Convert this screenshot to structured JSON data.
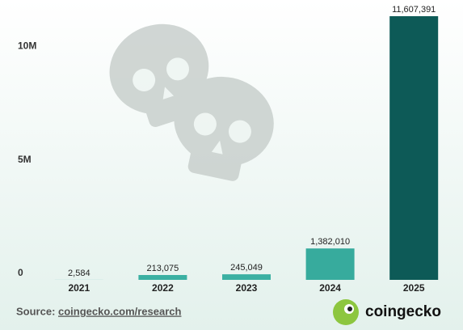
{
  "chart_data": {
    "type": "bar",
    "categories": [
      "2021",
      "2022",
      "2023",
      "2024",
      "2025"
    ],
    "values": [
      2584,
      213075,
      245049,
      1382010,
      11607391
    ],
    "value_labels": [
      "2,584",
      "213,075",
      "245,049",
      "1,382,010",
      "11,607,391"
    ],
    "colors": [
      "#3bb0a2",
      "#3bb0a2",
      "#3bb0a2",
      "#37ab9d",
      "#0d5a57"
    ],
    "ylim": [
      0,
      12000000
    ],
    "yticks": [
      0,
      {
        "value": 5000000,
        "label": "5M"
      },
      {
        "value": 10000000,
        "label": "10M"
      }
    ],
    "grid": false
  },
  "footer": {
    "source_label": "Source:",
    "source_link": "coingecko.com/research",
    "brand": "coingecko"
  }
}
